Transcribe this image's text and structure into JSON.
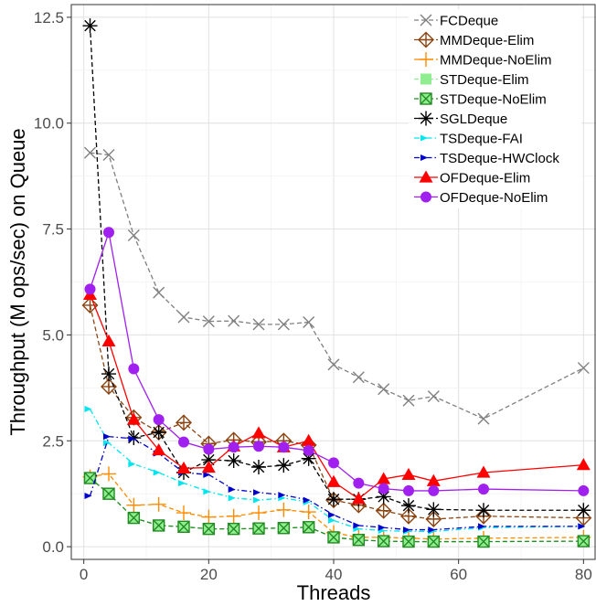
{
  "chart_data": {
    "type": "line",
    "title": "",
    "xlabel": "Threads",
    "ylabel": "Throughput (M ops/sec) on Queue",
    "xlim": [
      -2,
      82
    ],
    "ylim": [
      -0.3,
      12.8
    ],
    "xticks": [
      0,
      20,
      40,
      60,
      80
    ],
    "yticks": [
      0.0,
      2.5,
      5.0,
      7.5,
      10.0,
      12.5
    ],
    "xtick_labels": [
      "0",
      "20",
      "40",
      "60",
      "80"
    ],
    "ytick_labels": [
      "0.0",
      "2.5",
      "5.0",
      "7.5",
      "10.0",
      "12.5"
    ],
    "grid": true,
    "legend_position": "top-right",
    "series": [
      {
        "name": "FCDeque",
        "color": "#808080",
        "marker": "x",
        "dash": "dashed",
        "filled": false,
        "x": [
          1,
          4,
          8,
          12,
          16,
          20,
          24,
          28,
          32,
          36,
          40,
          44,
          48,
          52,
          56,
          64,
          80
        ],
        "y": [
          9.3,
          9.25,
          7.35,
          6.0,
          5.42,
          5.32,
          5.33,
          5.25,
          5.25,
          5.3,
          4.3,
          4.0,
          3.72,
          3.45,
          3.55,
          3.02,
          4.22
        ]
      },
      {
        "name": "MMDeque-Elim",
        "color": "#8B4513",
        "marker": "diamond-plus",
        "dash": "dashed",
        "filled": false,
        "x": [
          1,
          4,
          8,
          12,
          16,
          20,
          24,
          28,
          32,
          36,
          40,
          44,
          48,
          52,
          56,
          64,
          80
        ],
        "y": [
          5.7,
          3.78,
          3.05,
          2.7,
          2.93,
          2.43,
          2.52,
          2.47,
          2.5,
          2.4,
          1.1,
          0.98,
          0.85,
          0.72,
          0.65,
          0.72,
          0.68
        ]
      },
      {
        "name": "MMDeque-NoElim",
        "color": "#FF8C00",
        "marker": "plus",
        "dash": "dashed",
        "filled": false,
        "x": [
          1,
          4,
          8,
          12,
          16,
          20,
          24,
          28,
          32,
          36,
          40,
          44,
          48,
          52,
          56,
          64,
          80
        ],
        "y": [
          1.65,
          1.72,
          0.98,
          1.0,
          0.8,
          0.7,
          0.72,
          0.8,
          0.87,
          0.82,
          0.33,
          0.22,
          0.22,
          0.2,
          0.18,
          0.2,
          0.22
        ]
      },
      {
        "name": "STDeque-Elim",
        "color": "#90EE90",
        "marker": "square",
        "dash": "dashed",
        "filled": true,
        "x": [
          1,
          4,
          8,
          12,
          16,
          20,
          24,
          28,
          32,
          36,
          40,
          44,
          48,
          52,
          56,
          64,
          80
        ],
        "y": [
          1.62,
          1.25,
          0.68,
          0.5,
          0.47,
          0.42,
          0.42,
          0.43,
          0.44,
          0.46,
          0.22,
          0.16,
          0.13,
          0.12,
          0.12,
          0.12,
          0.13
        ]
      },
      {
        "name": "STDeque-NoElim",
        "color": "#228B22",
        "marker": "square-x",
        "dash": "dashed",
        "filled": false,
        "x": [
          1,
          4,
          8,
          12,
          16,
          20,
          24,
          28,
          32,
          36,
          40,
          44,
          48,
          52,
          56,
          64,
          80
        ],
        "y": [
          1.62,
          1.25,
          0.68,
          0.5,
          0.47,
          0.42,
          0.42,
          0.43,
          0.44,
          0.46,
          0.22,
          0.16,
          0.13,
          0.12,
          0.12,
          0.12,
          0.13
        ]
      },
      {
        "name": "SGLDeque",
        "color": "#000000",
        "marker": "asterisk",
        "dash": "dashed",
        "filled": false,
        "x": [
          1,
          4,
          8,
          12,
          16,
          20,
          24,
          28,
          32,
          36,
          40,
          44,
          48,
          52,
          56,
          64,
          80
        ],
        "y": [
          12.3,
          4.08,
          2.57,
          2.7,
          1.75,
          2.05,
          2.03,
          1.88,
          1.92,
          2.08,
          1.12,
          1.12,
          1.18,
          0.97,
          0.88,
          0.86,
          0.86
        ]
      },
      {
        "name": "TSDeque-FAI",
        "color": "#00E5EE",
        "marker": "arrow",
        "dash": "dashdot",
        "filled": true,
        "x": [
          1,
          4,
          8,
          12,
          16,
          20,
          24,
          28,
          32,
          36,
          40,
          44,
          48,
          52,
          56,
          64,
          80
        ],
        "y": [
          3.25,
          2.45,
          1.95,
          1.75,
          1.5,
          1.3,
          1.15,
          1.1,
          1.15,
          1.05,
          0.62,
          0.42,
          0.38,
          0.36,
          0.36,
          0.45,
          0.48
        ]
      },
      {
        "name": "TSDeque-HWClock",
        "color": "#0000CD",
        "marker": "arrow",
        "dash": "dashdot",
        "filled": true,
        "x": [
          1,
          4,
          8,
          12,
          16,
          20,
          24,
          28,
          32,
          36,
          40,
          44,
          48,
          52,
          56,
          64,
          80
        ],
        "y": [
          1.2,
          2.6,
          2.55,
          2.2,
          1.75,
          1.7,
          1.35,
          1.28,
          1.22,
          1.1,
          0.75,
          0.5,
          0.45,
          0.4,
          0.4,
          0.48,
          0.48
        ]
      },
      {
        "name": "OFDeque-Elim",
        "color": "#FF0000",
        "marker": "triangle",
        "dash": "solid",
        "filled": true,
        "x": [
          1,
          4,
          8,
          12,
          16,
          20,
          24,
          28,
          32,
          36,
          40,
          44,
          48,
          52,
          56,
          64,
          80
        ],
        "y": [
          5.95,
          4.85,
          3.0,
          2.28,
          1.85,
          1.87,
          2.37,
          2.68,
          2.35,
          2.5,
          1.53,
          1.13,
          1.6,
          1.7,
          1.55,
          1.75,
          1.93
        ]
      },
      {
        "name": "OFDeque-NoElim",
        "color": "#A020F0",
        "marker": "circle",
        "dash": "solid",
        "filled": true,
        "x": [
          1,
          4,
          8,
          12,
          16,
          20,
          24,
          28,
          32,
          36,
          40,
          44,
          48,
          52,
          56,
          64,
          80
        ],
        "y": [
          6.08,
          7.42,
          4.2,
          3.0,
          2.47,
          2.3,
          2.35,
          2.37,
          2.35,
          2.27,
          1.98,
          1.5,
          1.37,
          1.32,
          1.32,
          1.36,
          1.32
        ]
      }
    ]
  }
}
